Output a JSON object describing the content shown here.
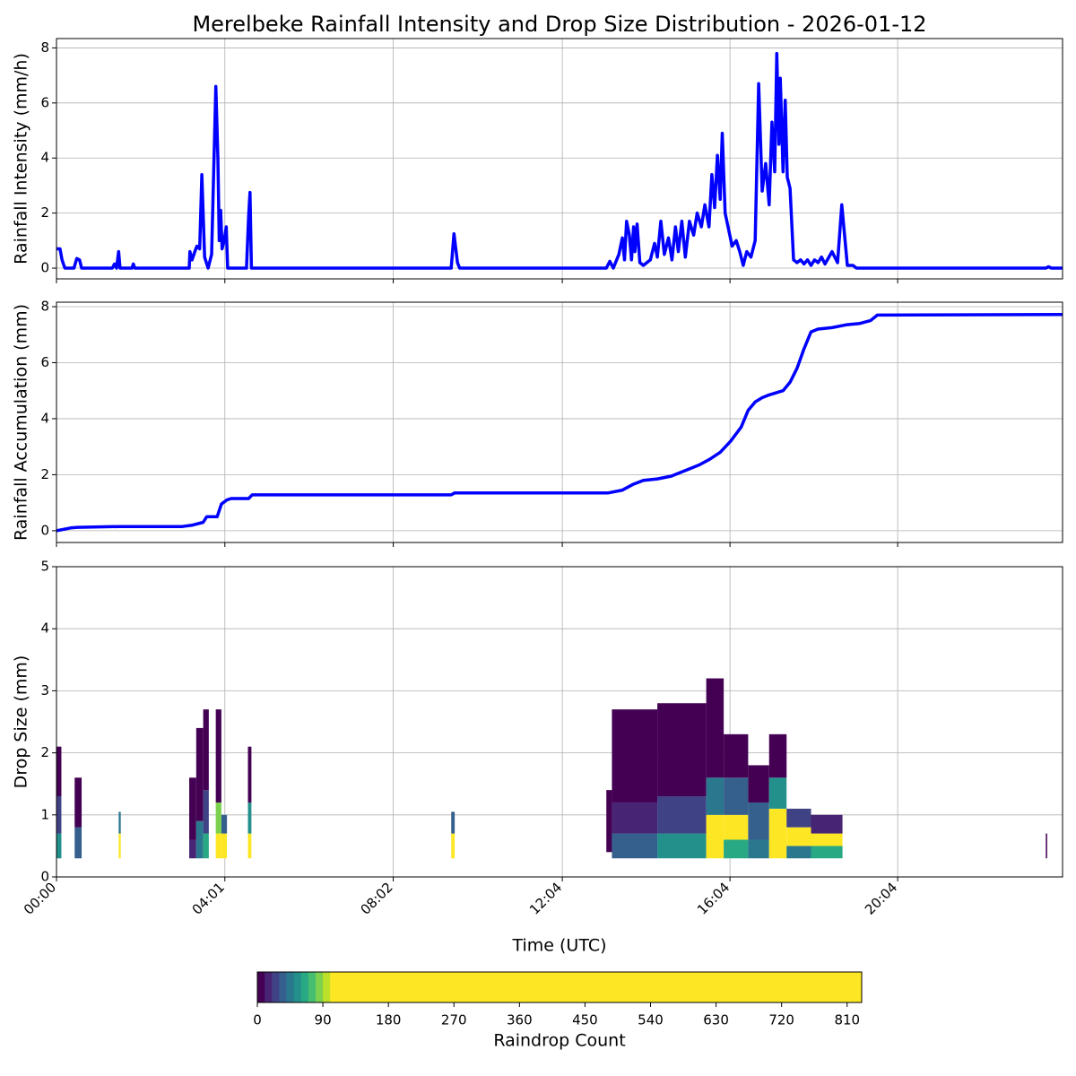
{
  "chart_data": [
    {
      "type": "line",
      "title": "Merelbeke Rainfall Intensity and Drop Size Distribution - 2026-01-12",
      "ylabel": "Rainfall Intensity (mm/h)",
      "grid": true,
      "xlim": [
        0,
        1440
      ],
      "xticks": [
        0,
        241,
        482,
        724,
        964,
        1204
      ],
      "ylim": [
        -0.39,
        8.34
      ],
      "yticks": [
        0,
        2,
        4,
        6,
        8
      ],
      "x": [
        0,
        5,
        8,
        12,
        25,
        29,
        33,
        36,
        80,
        83,
        86,
        89,
        91,
        108,
        110,
        112,
        190,
        191,
        194,
        198,
        201,
        205,
        208,
        212,
        217,
        222,
        228,
        231,
        233,
        235,
        237,
        240,
        243,
        245,
        272,
        275,
        277,
        279,
        565,
        569,
        574,
        577,
        787,
        792,
        797,
        805,
        810,
        813,
        816,
        820,
        823,
        826,
        828,
        831,
        835,
        840,
        850,
        856,
        860,
        865,
        870,
        876,
        881,
        886,
        890,
        895,
        900,
        906,
        912,
        917,
        923,
        928,
        934,
        938,
        942,
        946,
        950,
        953,
        957,
        962,
        967,
        973,
        978,
        983,
        988,
        994,
        1000,
        1005,
        1010,
        1015,
        1020,
        1024,
        1028,
        1031,
        1034,
        1036,
        1040,
        1043,
        1046,
        1050,
        1055,
        1060,
        1065,
        1070,
        1075,
        1080,
        1085,
        1090,
        1095,
        1100,
        1110,
        1118,
        1124,
        1128,
        1132,
        1140,
        1145,
        1416,
        1420,
        1424,
        1440
      ],
      "series": [
        {
          "name": "Rainfall Intensity",
          "color": "#0000ff",
          "values": [
            0.7,
            0.7,
            0.3,
            0,
            0,
            0.35,
            0.3,
            0,
            0,
            0.15,
            0,
            0.6,
            0,
            0,
            0.15,
            0,
            0,
            0.6,
            0.3,
            0.6,
            0.8,
            0.7,
            3.4,
            0.4,
            0,
            0.5,
            6.6,
            4,
            1,
            2.1,
            0.7,
            1.0,
            1.5,
            0,
            0,
            1.9,
            2.75,
            0,
            0,
            1.25,
            0.2,
            0,
            0,
            0.25,
            0,
            0.5,
            1.1,
            0.3,
            1.7,
            1.2,
            0.3,
            1.5,
            0.6,
            1.6,
            0.2,
            0.1,
            0.3,
            0.9,
            0.4,
            1.7,
            0.5,
            1.1,
            0.3,
            1.5,
            0.6,
            1.7,
            0.4,
            1.7,
            1.2,
            2.0,
            1.5,
            2.3,
            1.5,
            3.4,
            2.2,
            4.1,
            2.5,
            4.9,
            2.0,
            1.4,
            0.8,
            1.0,
            0.6,
            0.1,
            0.6,
            0.4,
            1.0,
            6.7,
            2.8,
            3.8,
            2.3,
            5.3,
            3.5,
            7.8,
            4.5,
            6.9,
            3.5,
            6.1,
            3.3,
            2.9,
            0.3,
            0.2,
            0.3,
            0.15,
            0.3,
            0.1,
            0.3,
            0.2,
            0.4,
            0.15,
            0.6,
            0.2,
            2.3,
            1.2,
            0.1,
            0.1,
            0,
            0,
            0.05,
            0,
            0
          ]
        }
      ]
    },
    {
      "type": "line",
      "ylabel": "Rainfall Accumulation (mm)",
      "grid": true,
      "xlim": [
        0,
        1440
      ],
      "xticks": [
        0,
        241,
        482,
        724,
        964,
        1204
      ],
      "ylim": [
        -0.42,
        8.16
      ],
      "yticks": [
        0,
        2,
        4,
        6,
        8
      ],
      "x": [
        0,
        20,
        30,
        90,
        180,
        195,
        210,
        215,
        230,
        236,
        244,
        250,
        275,
        280,
        565,
        570,
        790,
        810,
        825,
        840,
        860,
        880,
        900,
        920,
        935,
        950,
        965,
        980,
        990,
        1000,
        1010,
        1020,
        1040,
        1050,
        1060,
        1070,
        1080,
        1090,
        1110,
        1130,
        1150,
        1165,
        1175,
        1440
      ],
      "series": [
        {
          "name": "Rainfall Accumulation",
          "color": "#0000ff",
          "values": [
            0,
            0.1,
            0.12,
            0.15,
            0.15,
            0.2,
            0.3,
            0.5,
            0.5,
            0.95,
            1.1,
            1.15,
            1.15,
            1.28,
            1.28,
            1.35,
            1.35,
            1.45,
            1.65,
            1.8,
            1.85,
            1.95,
            2.15,
            2.35,
            2.55,
            2.8,
            3.2,
            3.7,
            4.3,
            4.6,
            4.75,
            4.85,
            5.0,
            5.3,
            5.8,
            6.5,
            7.1,
            7.2,
            7.25,
            7.35,
            7.4,
            7.5,
            7.7,
            7.72
          ]
        }
      ]
    },
    {
      "type": "heatmap",
      "ylabel": "Drop Size (mm)",
      "xlabel": "Time (UTC)",
      "grid": true,
      "xlim": [
        0,
        1440
      ],
      "xticks": [
        {
          "value": 0,
          "label": "00:00"
        },
        {
          "value": 241,
          "label": "04:01"
        },
        {
          "value": 482,
          "label": "08:02"
        },
        {
          "value": 724,
          "label": "12:04"
        },
        {
          "value": 964,
          "label": "16:04"
        },
        {
          "value": 1204,
          "label": "20:04"
        }
      ],
      "ylim": [
        0,
        5
      ],
      "yticks": [
        0,
        1,
        2,
        3,
        4,
        5
      ],
      "cells": [
        {
          "t0": 0,
          "t1": 7,
          "d0": 0.3,
          "d1": 0.7,
          "count": 50
        },
        {
          "t0": 0,
          "t1": 7,
          "d0": 0.7,
          "d1": 1.3,
          "count": 25
        },
        {
          "t0": 0,
          "t1": 7,
          "d0": 1.3,
          "d1": 2.1,
          "count": 5
        },
        {
          "t0": 26,
          "t1": 36,
          "d0": 0.3,
          "d1": 0.8,
          "count": 30
        },
        {
          "t0": 26,
          "t1": 36,
          "d0": 0.8,
          "d1": 1.6,
          "count": 8
        },
        {
          "t0": 89,
          "t1": 92,
          "d0": 0.3,
          "d1": 0.7,
          "count": 120
        },
        {
          "t0": 89,
          "t1": 92,
          "d0": 0.7,
          "d1": 1.05,
          "count": 40
        },
        {
          "t0": 190,
          "t1": 200,
          "d0": 0.3,
          "d1": 0.6,
          "count": 15
        },
        {
          "t0": 190,
          "t1": 200,
          "d0": 0.6,
          "d1": 1.6,
          "count": 6
        },
        {
          "t0": 200,
          "t1": 210,
          "d0": 0.3,
          "d1": 0.9,
          "count": 40
        },
        {
          "t0": 200,
          "t1": 210,
          "d0": 0.9,
          "d1": 2.4,
          "count": 6
        },
        {
          "t0": 210,
          "t1": 218,
          "d0": 0.3,
          "d1": 0.7,
          "count": 60
        },
        {
          "t0": 210,
          "t1": 218,
          "d0": 0.7,
          "d1": 1.4,
          "count": 20
        },
        {
          "t0": 210,
          "t1": 218,
          "d0": 1.4,
          "d1": 2.7,
          "count": 5
        },
        {
          "t0": 228,
          "t1": 236,
          "d0": 0.3,
          "d1": 0.7,
          "count": 150
        },
        {
          "t0": 228,
          "t1": 236,
          "d0": 0.7,
          "d1": 1.2,
          "count": 80
        },
        {
          "t0": 228,
          "t1": 236,
          "d0": 1.2,
          "d1": 2.7,
          "count": 8
        },
        {
          "t0": 236,
          "t1": 244,
          "d0": 0.3,
          "d1": 0.7,
          "count": 100
        },
        {
          "t0": 236,
          "t1": 244,
          "d0": 0.7,
          "d1": 1.0,
          "count": 30
        },
        {
          "t0": 274,
          "t1": 279,
          "d0": 0.3,
          "d1": 0.7,
          "count": 140
        },
        {
          "t0": 274,
          "t1": 279,
          "d0": 0.7,
          "d1": 1.2,
          "count": 50
        },
        {
          "t0": 274,
          "t1": 279,
          "d0": 1.2,
          "d1": 2.1,
          "count": 6
        },
        {
          "t0": 565,
          "t1": 570,
          "d0": 0.3,
          "d1": 0.7,
          "count": 150
        },
        {
          "t0": 565,
          "t1": 570,
          "d0": 0.7,
          "d1": 1.05,
          "count": 30
        },
        {
          "t0": 787,
          "t1": 795,
          "d0": 0.4,
          "d1": 1.4,
          "count": 8
        },
        {
          "t0": 795,
          "t1": 860,
          "d0": 0.3,
          "d1": 0.7,
          "count": 30
        },
        {
          "t0": 795,
          "t1": 860,
          "d0": 0.7,
          "d1": 1.2,
          "count": 15
        },
        {
          "t0": 795,
          "t1": 860,
          "d0": 1.2,
          "d1": 2.7,
          "count": 4
        },
        {
          "t0": 860,
          "t1": 930,
          "d0": 0.3,
          "d1": 0.7,
          "count": 50
        },
        {
          "t0": 860,
          "t1": 930,
          "d0": 0.7,
          "d1": 1.3,
          "count": 25
        },
        {
          "t0": 860,
          "t1": 930,
          "d0": 1.3,
          "d1": 2.8,
          "count": 5
        },
        {
          "t0": 930,
          "t1": 955,
          "d0": 0.3,
          "d1": 0.6,
          "count": 120
        },
        {
          "t0": 930,
          "t1": 955,
          "d0": 0.6,
          "d1": 1.0,
          "count": 150
        },
        {
          "t0": 930,
          "t1": 955,
          "d0": 1.0,
          "d1": 1.6,
          "count": 40
        },
        {
          "t0": 930,
          "t1": 955,
          "d0": 1.6,
          "d1": 3.2,
          "count": 5
        },
        {
          "t0": 955,
          "t1": 990,
          "d0": 0.3,
          "d1": 0.6,
          "count": 60
        },
        {
          "t0": 955,
          "t1": 990,
          "d0": 0.6,
          "d1": 1.0,
          "count": 120
        },
        {
          "t0": 955,
          "t1": 990,
          "d0": 1.0,
          "d1": 1.6,
          "count": 30
        },
        {
          "t0": 955,
          "t1": 990,
          "d0": 1.6,
          "d1": 2.3,
          "count": 5
        },
        {
          "t0": 990,
          "t1": 1020,
          "d0": 0.3,
          "d1": 0.6,
          "count": 40
        },
        {
          "t0": 990,
          "t1": 1020,
          "d0": 0.6,
          "d1": 1.2,
          "count": 30
        },
        {
          "t0": 990,
          "t1": 1020,
          "d0": 1.2,
          "d1": 1.8,
          "count": 6
        },
        {
          "t0": 1020,
          "t1": 1045,
          "d0": 0.3,
          "d1": 0.6,
          "count": 100
        },
        {
          "t0": 1020,
          "t1": 1045,
          "d0": 0.6,
          "d1": 1.1,
          "count": 200
        },
        {
          "t0": 1020,
          "t1": 1045,
          "d0": 1.1,
          "d1": 1.6,
          "count": 50
        },
        {
          "t0": 1020,
          "t1": 1045,
          "d0": 1.6,
          "d1": 2.3,
          "count": 6
        },
        {
          "t0": 1045,
          "t1": 1080,
          "d0": 0.3,
          "d1": 0.5,
          "count": 40
        },
        {
          "t0": 1045,
          "t1": 1080,
          "d0": 0.5,
          "d1": 0.8,
          "count": 110
        },
        {
          "t0": 1045,
          "t1": 1080,
          "d0": 0.8,
          "d1": 1.1,
          "count": 20
        },
        {
          "t0": 1080,
          "t1": 1125,
          "d0": 0.3,
          "d1": 0.5,
          "count": 60
        },
        {
          "t0": 1080,
          "t1": 1125,
          "d0": 0.5,
          "d1": 0.7,
          "count": 140
        },
        {
          "t0": 1080,
          "t1": 1125,
          "d0": 0.7,
          "d1": 1.0,
          "count": 15
        },
        {
          "t0": 1416,
          "t1": 1418,
          "d0": 0.3,
          "d1": 0.7,
          "count": 5
        }
      ],
      "colorbar": {
        "label": "Raindrop Count",
        "lim": [
          0,
          830
        ],
        "ticks": [
          0,
          90,
          180,
          270,
          360,
          450,
          540,
          630,
          720,
          810
        ],
        "vmax": 100,
        "step": 10,
        "colormap": "viridis"
      }
    }
  ]
}
